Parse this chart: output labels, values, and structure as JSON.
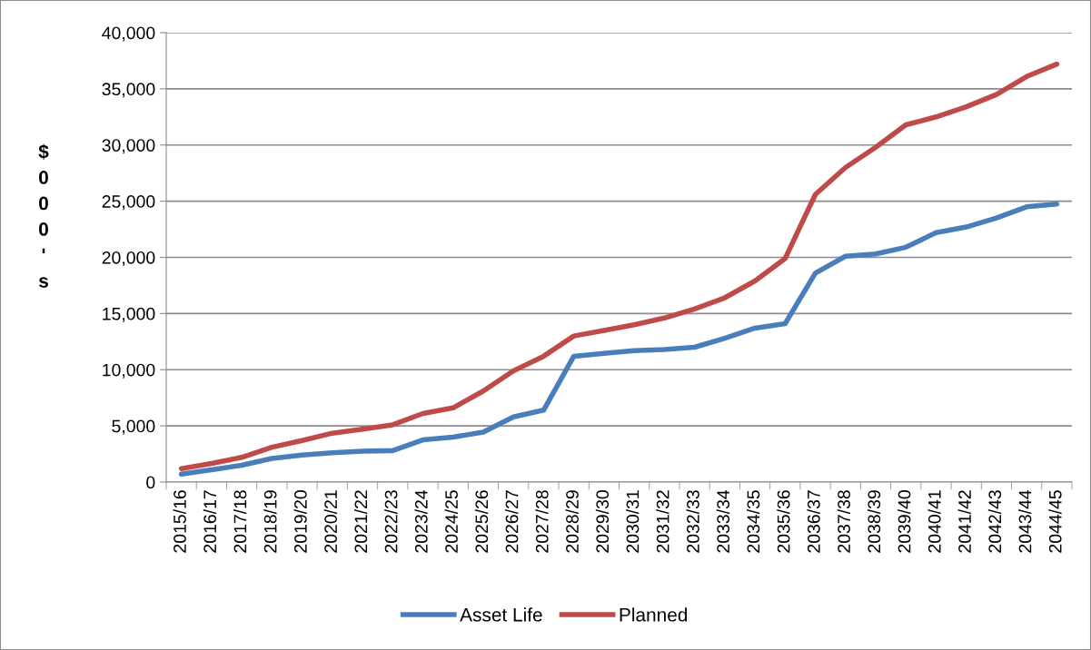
{
  "chart_data": {
    "type": "line",
    "ylabel": "$000's",
    "categories": [
      "2015/16",
      "2016/17",
      "2017/18",
      "2018/19",
      "2019/20",
      "2020/21",
      "2021/22",
      "2022/23",
      "2023/24",
      "2024/25",
      "2025/26",
      "2026/27",
      "2027/28",
      "2028/29",
      "2029/30",
      "2030/31",
      "2031/32",
      "2032/33",
      "2033/34",
      "2034/35",
      "2035/36",
      "2036/37",
      "2037/38",
      "2038/39",
      "2039/40",
      "2040/41",
      "2041/42",
      "2042/43",
      "2043/44",
      "2044/45"
    ],
    "series": [
      {
        "name": "Asset Life",
        "color": "#4a7ebb",
        "values": [
          700,
          1100,
          1500,
          2100,
          2400,
          2600,
          2750,
          2800,
          3750,
          4000,
          4450,
          5800,
          6400,
          11200,
          11450,
          11700,
          11800,
          12000,
          12800,
          13700,
          14100,
          18600,
          20100,
          20300,
          20900,
          22200,
          22700,
          23500,
          24500,
          24750
        ]
      },
      {
        "name": "Planned",
        "color": "#be4b48",
        "values": [
          1200,
          1650,
          2200,
          3100,
          3700,
          4350,
          4700,
          5100,
          6100,
          6600,
          8100,
          9900,
          11200,
          13000,
          13500,
          14000,
          14600,
          15400,
          16400,
          17900,
          19900,
          25600,
          28000,
          29800,
          31800,
          32500,
          33400,
          34500,
          36100,
          37200
        ]
      }
    ],
    "ylim": [
      0,
      40000
    ],
    "yticks": [
      {
        "value": 0,
        "label": "0"
      },
      {
        "value": 5000,
        "label": "5,000"
      },
      {
        "value": 10000,
        "label": "10,000"
      },
      {
        "value": 15000,
        "label": "15,000"
      },
      {
        "value": 20000,
        "label": "20,000"
      },
      {
        "value": 25000,
        "label": "25,000"
      },
      {
        "value": 30000,
        "label": "30,000"
      },
      {
        "value": 35000,
        "label": "35,000"
      },
      {
        "value": 40000,
        "label": "40,000"
      }
    ],
    "grid": "y",
    "legend": "bottom",
    "marker": "none",
    "line_style": "solid"
  }
}
